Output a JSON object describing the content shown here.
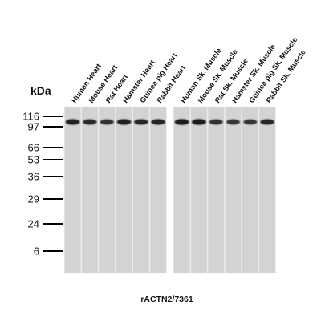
{
  "unit_label": "kDa",
  "caption": "rACTN2/7361",
  "colors": {
    "membrane": "#d3d3d3",
    "lane_gap": "#ebebeb",
    "band": "#1c1c1c",
    "marker_tick": "#000000"
  },
  "markers": [
    "116",
    "97",
    "66",
    "53",
    "36",
    "29",
    "24",
    "6"
  ],
  "panels": [
    {
      "lanes": [
        {
          "label": "Human Heart",
          "band_intensity": 0.95
        },
        {
          "label": "Mouse Heart",
          "band_intensity": 0.85
        },
        {
          "label": "Rat Heart",
          "band_intensity": 0.8
        },
        {
          "label": "Hamster Heart",
          "band_intensity": 0.95
        },
        {
          "label": "Guinea pig Heart",
          "band_intensity": 0.9
        },
        {
          "label": "Rabbit Heart",
          "band_intensity": 0.92
        }
      ]
    },
    {
      "lanes": [
        {
          "label": "Human Sk. Muscle",
          "band_intensity": 1.0
        },
        {
          "label": "Mouse Sk. Muscle",
          "band_intensity": 1.0
        },
        {
          "label": "Rat Sk. Muscle",
          "band_intensity": 0.8
        },
        {
          "label": "Hamster Sk. Muscle",
          "band_intensity": 0.75
        },
        {
          "label": "Guinea pig Sk. Muscle",
          "band_intensity": 0.75
        },
        {
          "label": "Rabbit Sk. Muscle",
          "band_intensity": 0.9
        }
      ]
    }
  ]
}
